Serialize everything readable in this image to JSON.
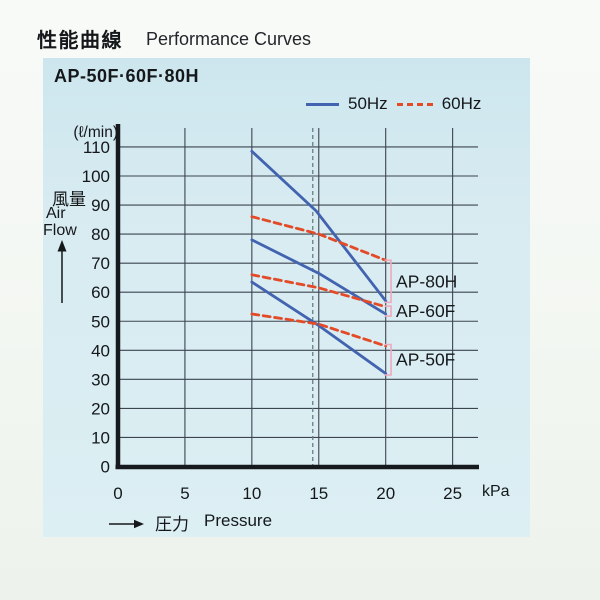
{
  "header": {
    "title_jp": "性能曲線",
    "title_en": "Performance Curves",
    "model": "AP-50F·60F·80H"
  },
  "legend": {
    "hz50": "50Hz",
    "hz60": "60Hz"
  },
  "chart_labels": {
    "y_unit": "(ℓ/min)",
    "ylabel_jp": "風量",
    "ylabel_en_line1": "Air",
    "ylabel_en_line2": "Flow",
    "x_unit": "kPa",
    "xlabel_jp": "圧力",
    "xlabel_en": "Pressure"
  },
  "colors": {
    "panel_bg": "#d6eaf1",
    "grid": "#3c4450",
    "axis": "#16191d",
    "line_50hz": "#4263b0",
    "line_60hz": "#e34b28",
    "bracket": "#efa9bd",
    "reference_line": "#6b7d80",
    "text": "#15181b"
  },
  "chart_data": {
    "type": "line",
    "title": "AP-50F·60F·80H Performance Curves",
    "xlabel": "圧力 Pressure (kPa)",
    "ylabel": "風量 Air Flow (ℓ/min)",
    "xlim": [
      0,
      27
    ],
    "ylim": [
      0,
      117
    ],
    "x_ticks": [
      0,
      5,
      10,
      15,
      20,
      25
    ],
    "y_ticks": [
      0,
      10,
      20,
      30,
      40,
      50,
      60,
      70,
      80,
      90,
      100,
      110
    ],
    "grid": true,
    "legend_position": "top-right",
    "reference_line_x": 14.55,
    "series": [
      {
        "name": "AP-80H 50Hz",
        "model": "AP-80H",
        "frequency": "50Hz",
        "style": "solid",
        "color": "#4263b0",
        "points": [
          [
            10,
            108.5
          ],
          [
            14.8,
            88
          ],
          [
            20,
            57
          ]
        ]
      },
      {
        "name": "AP-80H 60Hz",
        "model": "AP-80H",
        "frequency": "60Hz",
        "style": "dashed",
        "color": "#e34b28",
        "points": [
          [
            10,
            86
          ],
          [
            15,
            80
          ],
          [
            20,
            71
          ]
        ]
      },
      {
        "name": "AP-60F 50Hz",
        "model": "AP-60F",
        "frequency": "50Hz",
        "style": "solid",
        "color": "#4263b0",
        "points": [
          [
            10,
            78
          ],
          [
            15,
            66.5
          ],
          [
            20,
            52.5
          ]
        ]
      },
      {
        "name": "AP-60F 60Hz",
        "model": "AP-60F",
        "frequency": "60Hz",
        "style": "dashed",
        "color": "#e34b28",
        "points": [
          [
            10,
            66
          ],
          [
            15,
            61.5
          ],
          [
            20,
            55
          ]
        ]
      },
      {
        "name": "AP-50F 50Hz",
        "model": "AP-50F",
        "frequency": "50Hz",
        "style": "solid",
        "color": "#4263b0",
        "points": [
          [
            10,
            63.5
          ],
          [
            15,
            48.5
          ],
          [
            20,
            32
          ]
        ]
      },
      {
        "name": "AP-50F 60Hz",
        "model": "AP-50F",
        "frequency": "60Hz",
        "style": "dashed",
        "color": "#e34b28",
        "points": [
          [
            10,
            52.5
          ],
          [
            15,
            49
          ],
          [
            20,
            41.5
          ]
        ]
      }
    ],
    "annotations": [
      {
        "label": "AP-80H",
        "bracket_x": 20.4,
        "y_top": 71,
        "y_bottom": 56.5
      },
      {
        "label": "AP-60F",
        "bracket_x": 20.4,
        "y_top": 55.2,
        "y_bottom": 51.8
      },
      {
        "label": "AP-50F",
        "bracket_x": 20.4,
        "y_top": 42,
        "y_bottom": 31.5
      }
    ]
  }
}
